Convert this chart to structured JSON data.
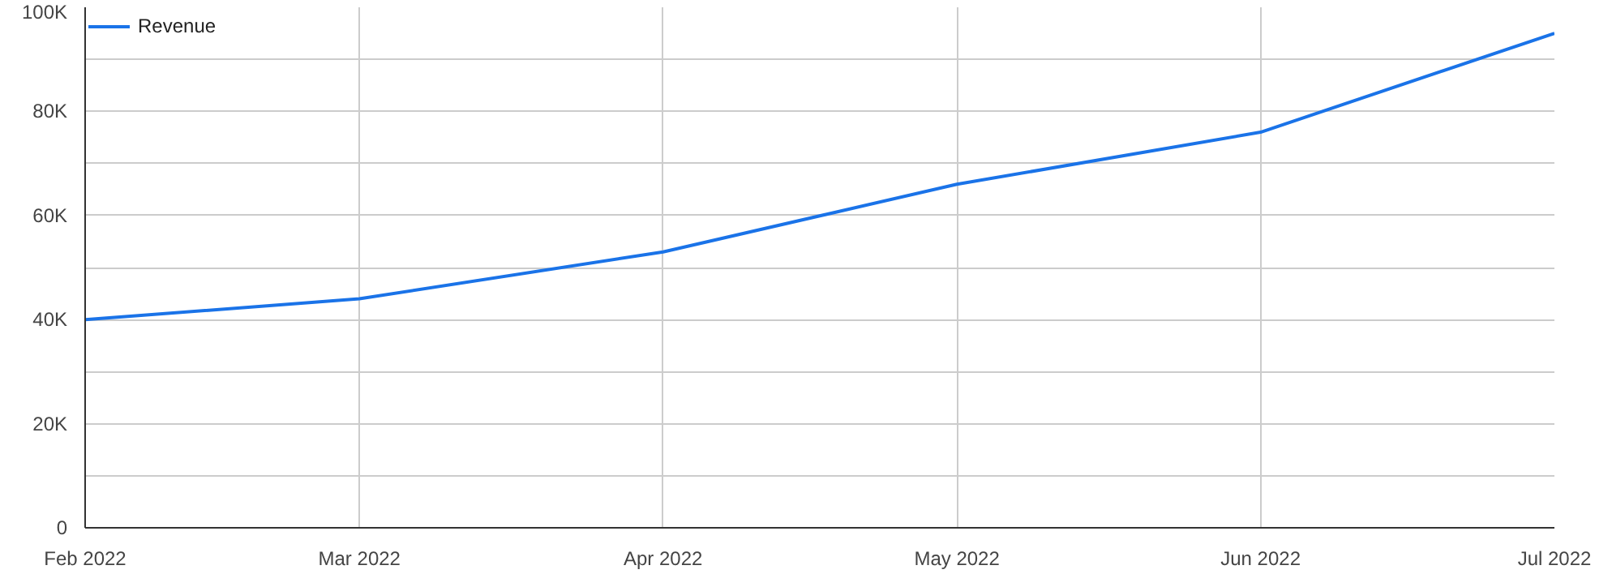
{
  "chart_data": {
    "type": "line",
    "x": [
      "2022-02",
      "2022-03",
      "2022-04",
      "2022-05",
      "2022-06",
      "2022-07"
    ],
    "series": [
      {
        "name": "Revenue",
        "color": "#1a73e8",
        "values": [
          40000,
          44000,
          53000,
          66000,
          76000,
          95000
        ]
      }
    ],
    "xlim": [
      "2022-02",
      "2022-07"
    ],
    "xticks": [
      {
        "value": "2022-02",
        "label": "Feb 2022"
      },
      {
        "value": "2022-03",
        "label": "Mar 2022"
      },
      {
        "value": "2022-04",
        "label": "Apr 2022"
      },
      {
        "value": "2022-05",
        "label": "May 2022"
      },
      {
        "value": "2022-06",
        "label": "Jun 2022"
      },
      {
        "value": "2022-07",
        "label": "Jul 2022"
      }
    ],
    "ylim": [
      0,
      100000
    ],
    "yticks": [
      {
        "value": 0,
        "label": "0"
      },
      {
        "value": 10000,
        "label": null
      },
      {
        "value": 20000,
        "label": "20K"
      },
      {
        "value": 30000,
        "label": null
      },
      {
        "value": 40000,
        "label": "40K"
      },
      {
        "value": 50000,
        "label": null
      },
      {
        "value": 60000,
        "label": "60K"
      },
      {
        "value": 70000,
        "label": null
      },
      {
        "value": 80000,
        "label": "80K"
      },
      {
        "value": 90000,
        "label": null
      },
      {
        "value": 100000,
        "label": "100K"
      }
    ],
    "grid": true,
    "legend": "top left",
    "marker": "none",
    "line_style": "solid"
  }
}
